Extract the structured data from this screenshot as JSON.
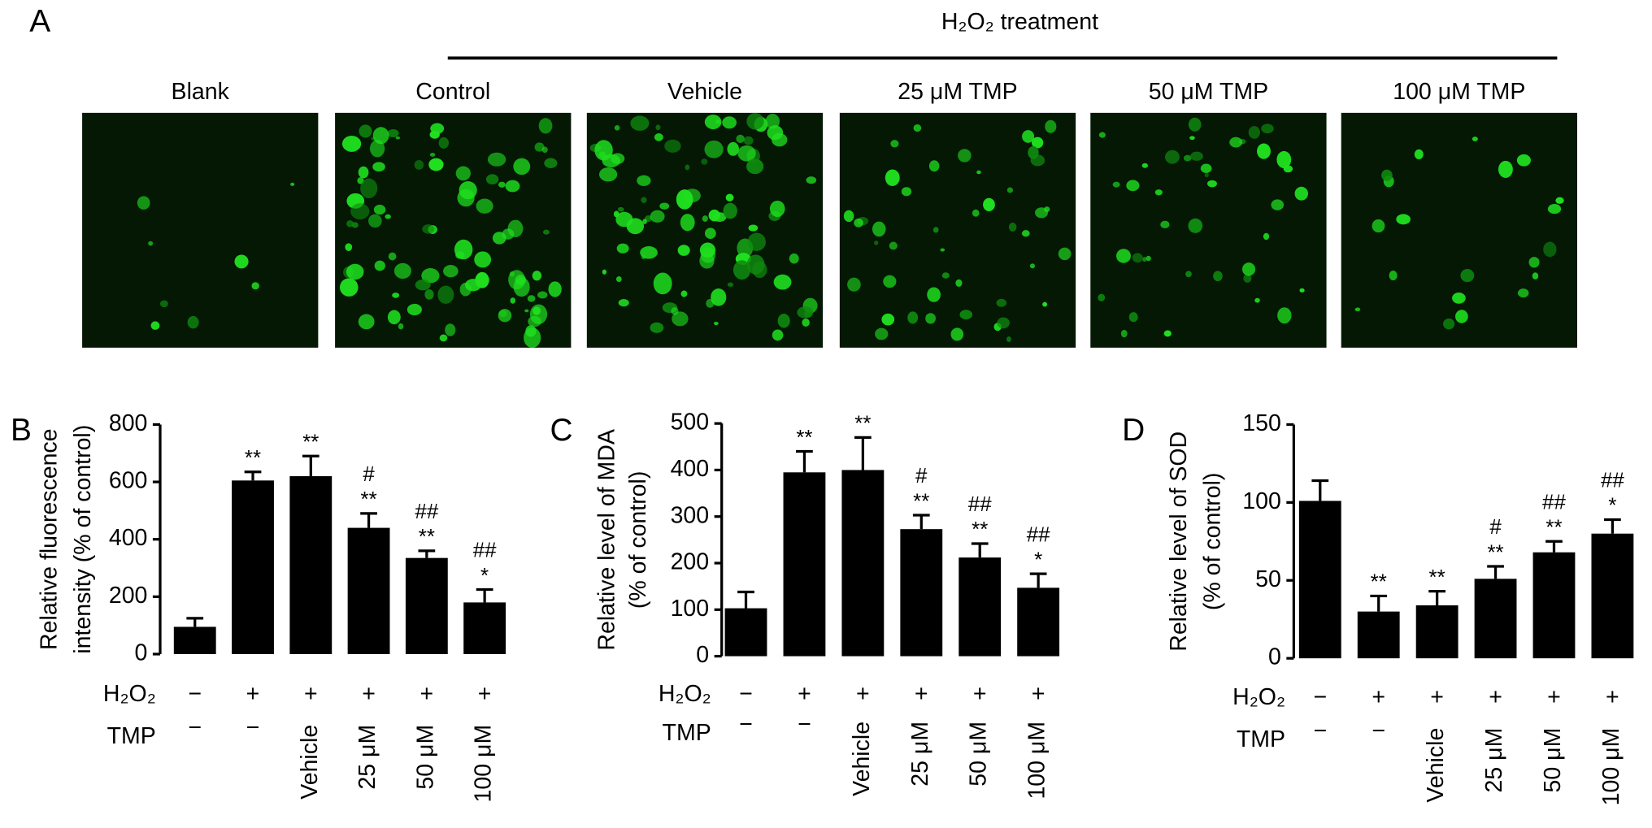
{
  "figure_a": {
    "panel_label": "A",
    "header": "H₂O₂ treatment",
    "images": [
      "Blank",
      "Control",
      "Vehicle",
      "25 μM TMP",
      "50 μM TMP",
      "100 μM TMP"
    ]
  },
  "chart_data": [
    {
      "type": "bar",
      "panel_label": "B",
      "ylabel": [
        "Relative fluorescence",
        "intensity (% of control)"
      ],
      "row_names": [
        "H₂O₂",
        "TMP"
      ],
      "categories": [
        [
          "−",
          "−"
        ],
        [
          "+",
          "−"
        ],
        [
          "+",
          "Vehicle"
        ],
        [
          "+",
          "25 μM"
        ],
        [
          "+",
          "50 μM"
        ],
        [
          "+",
          "100 μM"
        ]
      ],
      "values": [
        95,
        605,
        620,
        440,
        335,
        180
      ],
      "errors": [
        30,
        30,
        70,
        50,
        25,
        45
      ],
      "stars": [
        null,
        "**",
        "**",
        "**",
        "**",
        "*"
      ],
      "hashes": [
        null,
        null,
        null,
        "#",
        "##",
        "##"
      ],
      "color": "#000000",
      "ylim": [
        0,
        800
      ],
      "yticks": [
        0,
        200,
        400,
        600,
        800
      ]
    },
    {
      "type": "bar",
      "panel_label": "C",
      "ylabel": [
        "Relative level of MDA",
        "(% of control)"
      ],
      "row_names": [
        "H₂O₂",
        "TMP"
      ],
      "categories": [
        [
          "−",
          "−"
        ],
        [
          "+",
          "−"
        ],
        [
          "+",
          "Vehicle"
        ],
        [
          "+",
          "25 μM"
        ],
        [
          "+",
          "50 μM"
        ],
        [
          "+",
          "100 μM"
        ]
      ],
      "values": [
        103,
        395,
        400,
        273,
        212,
        147
      ],
      "errors": [
        35,
        45,
        70,
        30,
        30,
        30
      ],
      "stars": [
        null,
        "**",
        "**",
        "**",
        "**",
        "*"
      ],
      "hashes": [
        null,
        null,
        null,
        "#",
        "##",
        "##"
      ],
      "color": "#000000",
      "ylim": [
        0,
        500
      ],
      "yticks": [
        0,
        100,
        200,
        300,
        400,
        500
      ]
    },
    {
      "type": "bar",
      "panel_label": "D",
      "ylabel": [
        "Relative level of SOD",
        "(% of control)"
      ],
      "row_names": [
        "H₂O₂",
        "TMP"
      ],
      "categories": [
        [
          "−",
          "−"
        ],
        [
          "+",
          "−"
        ],
        [
          "+",
          "Vehicle"
        ],
        [
          "+",
          "25 μM"
        ],
        [
          "+",
          "50 μM"
        ],
        [
          "+",
          "100 μM"
        ]
      ],
      "values": [
        101,
        30,
        34,
        51,
        68,
        80
      ],
      "errors": [
        13,
        10,
        9,
        8,
        7,
        9
      ],
      "stars": [
        null,
        "**",
        "**",
        "**",
        "**",
        "*"
      ],
      "hashes": [
        null,
        null,
        null,
        "#",
        "##",
        "##"
      ],
      "color": "#000000",
      "ylim": [
        0,
        150
      ],
      "yticks": [
        0,
        50,
        100,
        150
      ]
    }
  ]
}
